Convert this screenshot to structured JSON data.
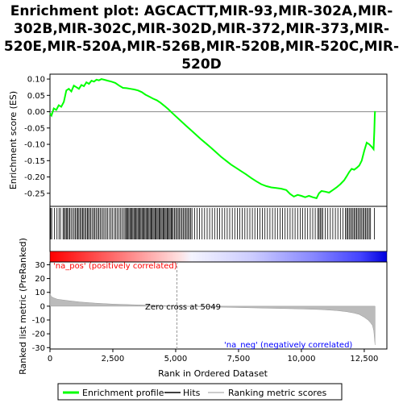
{
  "chart_data": {
    "type": "line",
    "title_lines": [
      "Enrichment plot: AGCACTT,MIR-93,MIR-302A,MIR-",
      "302B,MIR-302C,MIR-302D,MIR-372,MIR-373,MIR-",
      "520E,MIR-520A,MIR-526B,MIR-520B,MIR-520C,MIR-",
      "520D"
    ],
    "es_panel": {
      "ylabel": "Enrichment score (ES)",
      "ylim": [
        -0.29,
        0.115
      ],
      "yticks": [
        0.1,
        0.05,
        0.0,
        -0.05,
        -0.1,
        -0.15,
        -0.2,
        -0.25
      ],
      "ytick_labels": [
        "0.10",
        "0.05",
        "0.00",
        "-0.05",
        "-0.10",
        "-0.15",
        "-0.20",
        "-0.25"
      ],
      "color": "#00ff00",
      "series": {
        "name": "Enrichment profile",
        "x": [
          0,
          60,
          150,
          250,
          350,
          450,
          550,
          650,
          750,
          850,
          950,
          1050,
          1150,
          1250,
          1350,
          1450,
          1550,
          1650,
          1750,
          1850,
          1950,
          2050,
          2150,
          2300,
          2450,
          2600,
          2750,
          2900,
          3050,
          3200,
          3350,
          3500,
          3650,
          3800,
          3950,
          4100,
          4250,
          4400,
          4550,
          4700,
          4850,
          5000,
          5200,
          5400,
          5600,
          5800,
          6000,
          6200,
          6400,
          6600,
          6800,
          7000,
          7200,
          7400,
          7600,
          7800,
          8000,
          8200,
          8400,
          8600,
          8800,
          9000,
          9200,
          9400,
          9550,
          9700,
          9850,
          10000,
          10150,
          10300,
          10450,
          10600,
          10700,
          10800,
          10950,
          11100,
          11250,
          11400,
          11550,
          11700,
          11800,
          11900,
          12000,
          12100,
          12200,
          12300,
          12400,
          12500,
          12600,
          12700,
          12800,
          12870,
          12900,
          12920,
          12930
        ],
        "y": [
          -0.005,
          -0.012,
          0.01,
          0.005,
          0.02,
          0.015,
          0.03,
          0.065,
          0.07,
          0.062,
          0.08,
          0.075,
          0.07,
          0.082,
          0.078,
          0.09,
          0.085,
          0.095,
          0.092,
          0.098,
          0.096,
          0.1,
          0.098,
          0.095,
          0.092,
          0.088,
          0.08,
          0.073,
          0.072,
          0.07,
          0.068,
          0.065,
          0.06,
          0.052,
          0.046,
          0.04,
          0.035,
          0.027,
          0.018,
          0.008,
          -0.003,
          -0.014,
          -0.028,
          -0.042,
          -0.056,
          -0.07,
          -0.084,
          -0.097,
          -0.11,
          -0.124,
          -0.138,
          -0.15,
          -0.162,
          -0.172,
          -0.182,
          -0.192,
          -0.203,
          -0.213,
          -0.222,
          -0.228,
          -0.232,
          -0.234,
          -0.236,
          -0.24,
          -0.252,
          -0.26,
          -0.255,
          -0.258,
          -0.262,
          -0.258,
          -0.262,
          -0.265,
          -0.25,
          -0.243,
          -0.245,
          -0.248,
          -0.24,
          -0.232,
          -0.222,
          -0.21,
          -0.198,
          -0.185,
          -0.175,
          -0.178,
          -0.172,
          -0.165,
          -0.15,
          -0.12,
          -0.095,
          -0.1,
          -0.108,
          -0.115,
          -0.06,
          -0.01,
          0.002
        ]
      }
    },
    "hits_panel": {
      "positions": [
        30,
        70,
        180,
        280,
        360,
        420,
        520,
        560,
        610,
        650,
        690,
        740,
        790,
        840,
        900,
        960,
        1010,
        1060,
        1110,
        1150,
        1200,
        1250,
        1300,
        1340,
        1390,
        1440,
        1490,
        1530,
        1580,
        1630,
        1690,
        1740,
        1790,
        1840,
        1900,
        1950,
        2000,
        2060,
        2120,
        2180,
        2240,
        2300,
        2370,
        2430,
        2490,
        2560,
        2620,
        2680,
        2740,
        2800,
        2860,
        2920,
        2980,
        3020,
        3060,
        3100,
        3140,
        3180,
        3220,
        3260,
        3300,
        3340,
        3380,
        3420,
        3460,
        3500,
        3540,
        3580,
        3620,
        3660,
        3700,
        3740,
        3780,
        3820,
        3860,
        3900,
        3940,
        3980,
        4020,
        4060,
        4100,
        4140,
        4180,
        4220,
        4260,
        4300,
        4340,
        4380,
        4420,
        4460,
        4500,
        4540,
        4580,
        4620,
        4660,
        4700,
        4740,
        4780,
        4820,
        4860,
        4900,
        4950,
        5000,
        5050,
        5100,
        5150,
        5200,
        5250,
        5300,
        5350,
        5400,
        5450,
        5500,
        5550,
        5600,
        5650,
        5750,
        5850,
        5950,
        6050,
        6150,
        6250,
        6350,
        6450,
        6550,
        6650,
        6750,
        6850,
        6950,
        7050,
        7150,
        7250,
        7350,
        7450,
        7550,
        7650,
        7750,
        7850,
        7950,
        8050,
        8150,
        8250,
        8350,
        8450,
        8550,
        8650,
        8750,
        8850,
        8950,
        9050,
        9150,
        9250,
        9350,
        9450,
        9550,
        9650,
        9750,
        9850,
        9950,
        10050,
        10150,
        10250,
        10350,
        10450,
        10550,
        10650,
        10700,
        10750,
        10800,
        10850,
        10950,
        11050,
        11150,
        11250,
        11350,
        11450,
        11550,
        11650,
        11750,
        11800,
        11850,
        11900,
        11950,
        12000,
        12050,
        12100,
        12150,
        12200,
        12250,
        12300,
        12350,
        12400,
        12450,
        12500,
        12550,
        12600,
        12650,
        12700,
        12750,
        12900
      ]
    },
    "metric_panel": {
      "ylabel": "Ranked list metric (PreRanked)",
      "ylim": [
        -31,
        32
      ],
      "yticks": [
        30,
        20,
        10,
        0,
        -10,
        -20,
        -30
      ],
      "ytick_labels": [
        "30",
        "20",
        "10",
        "0",
        "-10",
        "-20",
        "-30"
      ],
      "series": {
        "name": "Ranking metric scores",
        "x": [
          0,
          50,
          150,
          300,
          500,
          800,
          1200,
          1800,
          2500,
          3500,
          4500,
          5049,
          6000,
          7000,
          8000,
          9000,
          10000,
          10800,
          11400,
          11800,
          12100,
          12300,
          12500,
          12650,
          12750,
          12830,
          12880,
          12910,
          12930
        ],
        "y": [
          9,
          7,
          6,
          5,
          4.5,
          3.8,
          3.0,
          2.2,
          1.5,
          0.9,
          0.4,
          0,
          -0.4,
          -0.8,
          -1.2,
          -1.6,
          -2.0,
          -2.5,
          -3.2,
          -4.0,
          -5.0,
          -6.0,
          -8.0,
          -10.0,
          -12.0,
          -14.0,
          -18.0,
          -24.0,
          -28.0
        ]
      },
      "annotations": {
        "pos_label": "'na_pos' (positively correlated)",
        "neg_label": "'na_neg' (negatively correlated)",
        "zero_cross": "Zero cross at 5049"
      },
      "zero_cross_x": 5049
    },
    "xaxis": {
      "label": "Rank in Ordered Dataset",
      "xlim": [
        0,
        13400
      ],
      "xticks": [
        0,
        2500,
        5000,
        7500,
        10000,
        12500
      ],
      "xtick_labels": [
        "0",
        "2,500",
        "5,000",
        "7,500",
        "10,000",
        "12,500"
      ]
    },
    "legend": {
      "placement": "bottom",
      "items": [
        "Enrichment profile",
        "Hits",
        "Ranking metric scores"
      ],
      "colors": [
        "#00ff00",
        "#000000",
        "#bbbbbb"
      ]
    },
    "colors": {
      "pos_label": "#ff0000",
      "neg_label": "#0000ff",
      "bar_red": "#ff0000",
      "bar_white": "#ffffff",
      "bar_blue": "#0000ff",
      "metric_fill": "#bbbbbb"
    }
  }
}
